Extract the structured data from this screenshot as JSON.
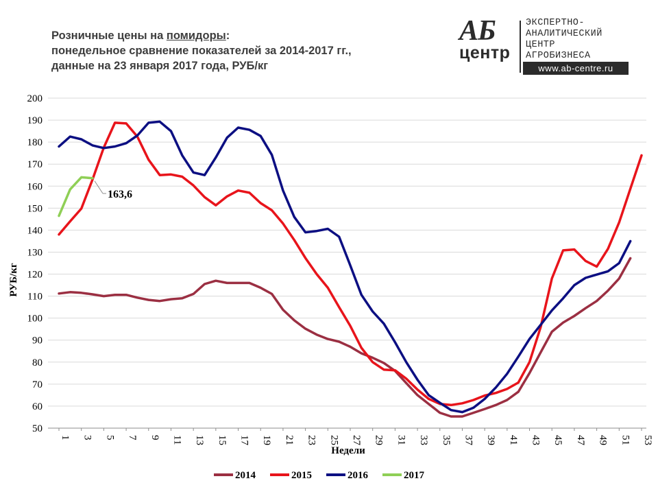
{
  "header": {
    "title_part1": "Розничные цены на ",
    "title_underlined": "помидоры",
    "title_part2": ":",
    "subtitle_line1": "понедельное сравнение показателей за 2014-2017 гг.,",
    "subtitle_line2": "данные на 23 января 2017 года, РУБ/кг"
  },
  "logo": {
    "ab": "АБ",
    "center": "центр",
    "line1": "ЭКСПЕРТНО-",
    "line2": "АНАЛИТИЧЕСКИЙ",
    "line3": "ЦЕНТР",
    "line4": "АГРОБИЗНЕСА",
    "url": "www.ab-centre.ru"
  },
  "chart_data": {
    "type": "line",
    "xlabel": "Недели",
    "ylabel": "РУБ/кг",
    "xlim": [
      1,
      53
    ],
    "ylim": [
      50,
      200
    ],
    "y_ticks": [
      50,
      60,
      70,
      80,
      90,
      100,
      110,
      120,
      130,
      140,
      150,
      160,
      170,
      180,
      190,
      200
    ],
    "x_tick_labels": [
      "1",
      "3",
      "5",
      "7",
      "9",
      "11",
      "13",
      "15",
      "17",
      "19",
      "21",
      "23",
      "25",
      "27",
      "29",
      "31",
      "33",
      "35",
      "37",
      "39",
      "41",
      "43",
      "45",
      "47",
      "49",
      "51",
      "53"
    ],
    "grid": "horizontal",
    "legend_position": "bottom",
    "annotation": {
      "week": 4,
      "value": 163.6,
      "label": "163,6"
    },
    "series": [
      {
        "name": "2014",
        "color": "#9b2f42",
        "values": [
          111.2,
          111.8,
          111.5,
          110.8,
          110.0,
          110.6,
          110.6,
          109.3,
          108.3,
          107.8,
          108.6,
          109.0,
          111.0,
          115.5,
          117.0,
          116.0,
          116.0,
          116.0,
          113.8,
          111.0,
          103.8,
          99.0,
          95.2,
          92.5,
          90.5,
          89.3,
          87.0,
          84.0,
          82.0,
          79.6,
          76.0,
          70.5,
          65.0,
          61.0,
          57.0,
          55.3,
          55.3,
          57.0,
          58.7,
          60.5,
          62.8,
          66.5,
          75.0,
          84.5,
          93.8,
          98.0,
          101.0,
          104.5,
          107.8,
          112.5,
          118.0,
          127.2
        ]
      },
      {
        "name": "2015",
        "color": "#e8141b",
        "values": [
          138.0,
          144.0,
          149.8,
          163.0,
          177.5,
          188.8,
          188.5,
          182.5,
          172.0,
          165.0,
          165.3,
          164.3,
          160.3,
          155.0,
          151.3,
          155.3,
          158.0,
          157.0,
          152.3,
          149.0,
          143.0,
          135.5,
          127.3,
          120.0,
          113.8,
          105.0,
          96.5,
          86.5,
          80.0,
          76.6,
          76.3,
          72.5,
          67.5,
          63.3,
          61.0,
          60.5,
          61.3,
          62.8,
          64.8,
          66.0,
          67.8,
          70.7,
          80.0,
          96.0,
          118.0,
          130.8,
          131.2,
          126.0,
          123.4,
          131.5,
          143.5,
          158.8,
          174.0
        ]
      },
      {
        "name": "2016",
        "color": "#0c0f82",
        "values": [
          178.0,
          182.5,
          181.3,
          178.5,
          177.3,
          178.0,
          179.5,
          183.0,
          188.8,
          189.3,
          185.0,
          174.0,
          166.2,
          165.0,
          173.0,
          182.0,
          186.6,
          185.6,
          182.8,
          174.2,
          158.0,
          146.0,
          139.0,
          139.6,
          140.6,
          137.0,
          124.0,
          110.6,
          103.0,
          97.5,
          89.0,
          80.0,
          72.0,
          65.0,
          61.5,
          58.2,
          57.3,
          59.3,
          63.3,
          68.5,
          74.7,
          82.5,
          90.5,
          97.0,
          103.5,
          109.0,
          115.0,
          118.3,
          119.8,
          121.3,
          125.0,
          135.0
        ]
      },
      {
        "name": "2017",
        "color": "#8fcf56",
        "values": [
          146.5,
          158.5,
          164.0,
          163.6
        ]
      }
    ]
  }
}
